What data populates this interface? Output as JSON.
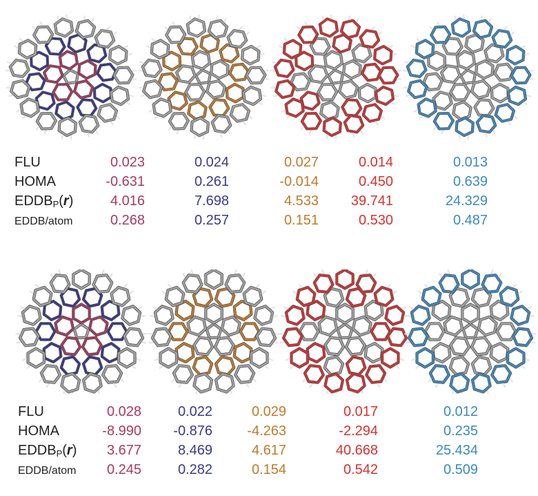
{
  "figure": {
    "colors": {
      "col1": "#a83a5e",
      "col2": "#3a3a8a",
      "col3": "#c07a2a",
      "col4": "#d83030",
      "col5": "#3a8ac0",
      "bond_gray": "#a0a0a0",
      "hydrogen": "#e6e6e6"
    },
    "molecule_highlights": [
      "crimson inner ring + blue outer ring",
      "orange middle ring",
      "red hexagon rings",
      "cyan outer rim"
    ],
    "panels": [
      {
        "name": "top",
        "view": "bowl-perspective",
        "rows": [
          {
            "label": "FLU",
            "values": [
              "0.023",
              "0.024",
              "0.027",
              "0.014",
              "0.013"
            ]
          },
          {
            "label": "HOMA",
            "values": [
              "-0.631",
              "0.261",
              "-0.014",
              "0.450",
              "0.639"
            ]
          },
          {
            "label_main": "EDDB",
            "label_sub": "P",
            "label_arg_open": "(",
            "label_arg": "r",
            "label_arg_close": ")",
            "values": [
              "4.016",
              "7.698",
              "4.533",
              "39.741",
              "24.329"
            ]
          },
          {
            "label": "EDDB/atom",
            "values": [
              "0.268",
              "0.257",
              "0.151",
              "0.530",
              "0.487"
            ]
          }
        ]
      },
      {
        "name": "bottom",
        "view": "planar",
        "rows": [
          {
            "label": "FLU",
            "values": [
              "0.028",
              "0.022",
              "0.029",
              "0.017",
              "0.012"
            ]
          },
          {
            "label": "HOMA",
            "values": [
              "-8.990",
              "-0.876",
              "-4.263",
              "-2.294",
              "0.235"
            ]
          },
          {
            "label_main": "EDDB",
            "label_sub": "P",
            "label_arg_open": "(",
            "label_arg": "r",
            "label_arg_close": ")",
            "values": [
              "3.677",
              "8.469",
              "4.617",
              "40.668",
              "25.434"
            ]
          },
          {
            "label": "EDDB/atom",
            "values": [
              "0.245",
              "0.282",
              "0.154",
              "0.542",
              "0.509"
            ]
          }
        ]
      }
    ]
  }
}
